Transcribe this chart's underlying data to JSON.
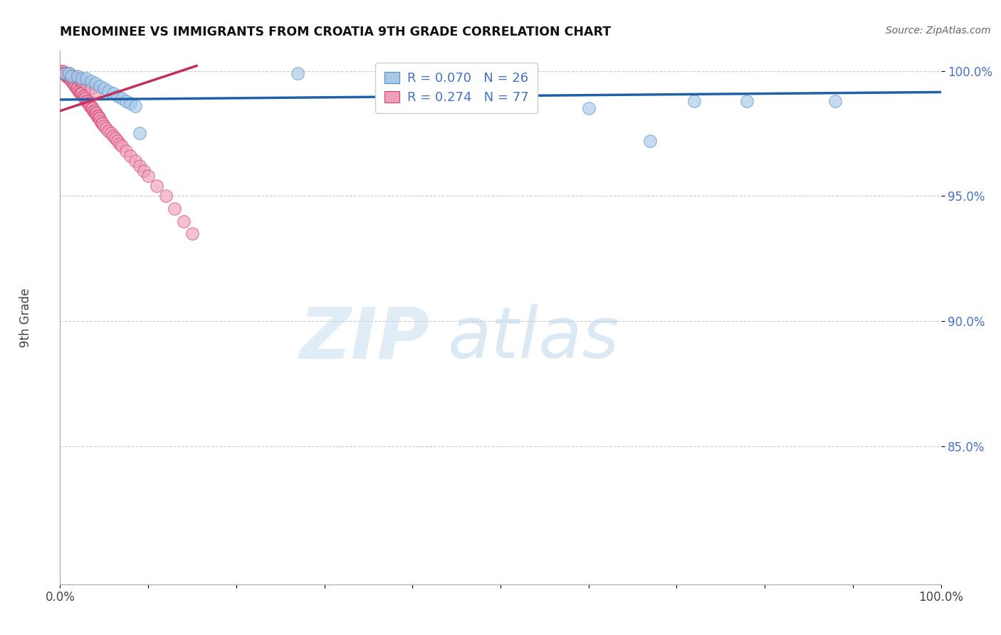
{
  "title": "MENOMINEE VS IMMIGRANTS FROM CROATIA 9TH GRADE CORRELATION CHART",
  "source": "Source: ZipAtlas.com",
  "ylabel": "9th Grade",
  "xlim": [
    0,
    1
  ],
  "ylim": [
    0.795,
    1.008
  ],
  "yticks": [
    0.85,
    0.9,
    0.95,
    1.0
  ],
  "ytick_labels": [
    "85.0%",
    "90.0%",
    "95.0%",
    "100.0%"
  ],
  "xticks": [
    0.0,
    0.1,
    0.2,
    0.3,
    0.4,
    0.5,
    0.6,
    0.7,
    0.8,
    0.9,
    1.0
  ],
  "xtick_labels": [
    "0.0%",
    "",
    "",
    "",
    "",
    "",
    "",
    "",
    "",
    "",
    "100.0%"
  ],
  "legend_r1": "R = 0.070",
  "legend_n1": "N = 26",
  "legend_r2": "R = 0.274",
  "legend_n2": "N = 77",
  "color_blue": "#a8c8e8",
  "color_blue_edge": "#5090c8",
  "color_pink": "#f0a0b8",
  "color_pink_edge": "#d04070",
  "color_line_blue": "#2060a8",
  "color_line_pink": "#c03060",
  "menominee_x": [
    0.005,
    0.01,
    0.013,
    0.02,
    0.025,
    0.03,
    0.035,
    0.04,
    0.045,
    0.05,
    0.055,
    0.06,
    0.065,
    0.07,
    0.075,
    0.08,
    0.085,
    0.09,
    0.27,
    0.38,
    0.52,
    0.6,
    0.67,
    0.72,
    0.78,
    0.88
  ],
  "menominee_y": [
    0.999,
    0.999,
    0.998,
    0.998,
    0.997,
    0.997,
    0.996,
    0.995,
    0.994,
    0.993,
    0.992,
    0.991,
    0.99,
    0.989,
    0.988,
    0.987,
    0.986,
    0.975,
    0.999,
    0.998,
    0.987,
    0.985,
    0.972,
    0.988,
    0.988,
    0.988
  ],
  "croatia_x": [
    0.002,
    0.003,
    0.004,
    0.005,
    0.006,
    0.007,
    0.008,
    0.009,
    0.01,
    0.011,
    0.012,
    0.013,
    0.014,
    0.015,
    0.016,
    0.017,
    0.018,
    0.019,
    0.02,
    0.021,
    0.022,
    0.023,
    0.024,
    0.025,
    0.026,
    0.027,
    0.028,
    0.029,
    0.03,
    0.031,
    0.032,
    0.033,
    0.034,
    0.035,
    0.036,
    0.037,
    0.038,
    0.039,
    0.04,
    0.041,
    0.042,
    0.043,
    0.044,
    0.045,
    0.046,
    0.047,
    0.048,
    0.05,
    0.052,
    0.055,
    0.058,
    0.06,
    0.063,
    0.065,
    0.068,
    0.07,
    0.075,
    0.08,
    0.085,
    0.09,
    0.095,
    0.1,
    0.11,
    0.12,
    0.13,
    0.14,
    0.15,
    0.003,
    0.005,
    0.008,
    0.01,
    0.015,
    0.02,
    0.025,
    0.03,
    0.035,
    0.04
  ],
  "croatia_y": [
    1.0,
    1.0,
    0.999,
    0.999,
    0.999,
    0.998,
    0.998,
    0.998,
    0.997,
    0.997,
    0.997,
    0.996,
    0.996,
    0.995,
    0.995,
    0.994,
    0.994,
    0.993,
    0.993,
    0.992,
    0.992,
    0.991,
    0.991,
    0.991,
    0.99,
    0.99,
    0.989,
    0.989,
    0.988,
    0.988,
    0.987,
    0.987,
    0.986,
    0.986,
    0.985,
    0.985,
    0.984,
    0.984,
    0.983,
    0.983,
    0.982,
    0.982,
    0.981,
    0.981,
    0.98,
    0.979,
    0.979,
    0.978,
    0.977,
    0.976,
    0.975,
    0.974,
    0.973,
    0.972,
    0.971,
    0.97,
    0.968,
    0.966,
    0.964,
    0.962,
    0.96,
    0.958,
    0.954,
    0.95,
    0.945,
    0.94,
    0.935,
    0.999,
    0.999,
    0.999,
    0.999,
    0.998,
    0.997,
    0.996,
    0.995,
    0.993,
    0.992
  ],
  "blue_line_x": [
    0.0,
    1.0
  ],
  "blue_line_y": [
    0.9885,
    0.9915
  ],
  "pink_line_x": [
    0.0,
    0.155
  ],
  "pink_line_y": [
    0.984,
    1.002
  ]
}
